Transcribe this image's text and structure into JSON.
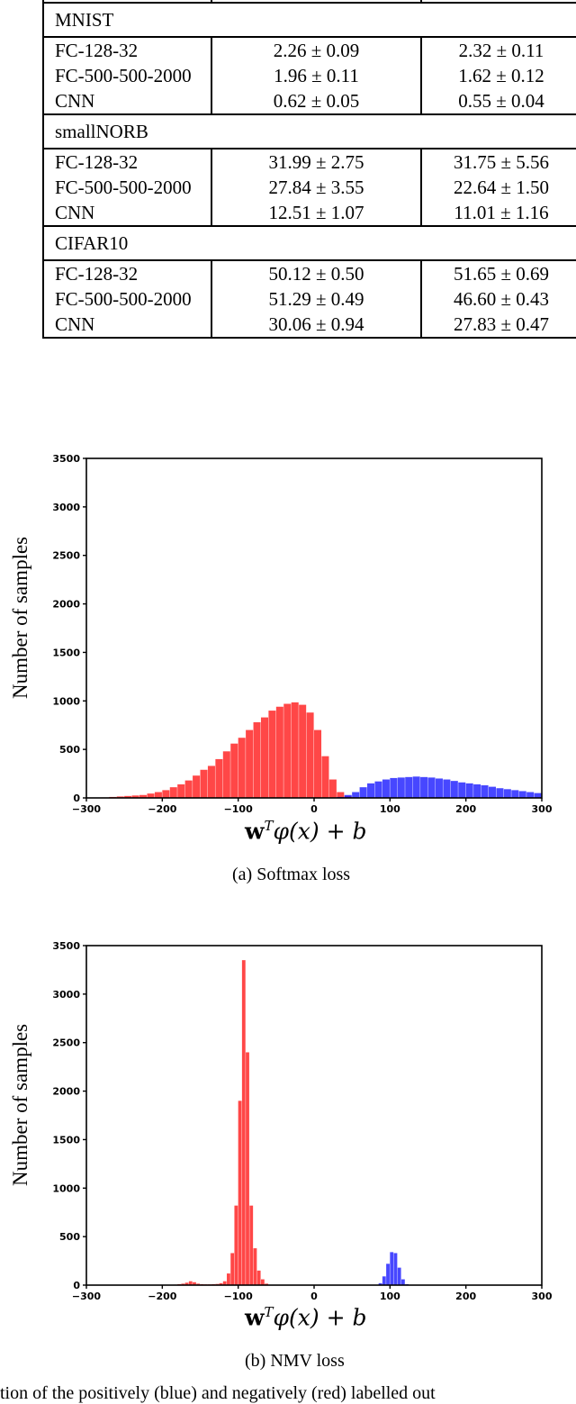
{
  "table": {
    "sections": [
      {
        "name": "MNIST",
        "rows": [
          {
            "model": "FC-128-32",
            "col1": "2.26 ± 0.09",
            "col2": "2.32 ± 0.11"
          },
          {
            "model": "FC-500-500-2000",
            "col1": "1.96 ± 0.11",
            "col2": "1.62 ± 0.12"
          },
          {
            "model": "CNN",
            "col1": "0.62 ± 0.05",
            "col2": "0.55 ± 0.04"
          }
        ]
      },
      {
        "name": "smallNORB",
        "rows": [
          {
            "model": "FC-128-32",
            "col1": "31.99 ± 2.75",
            "col2": "31.75 ± 5.56"
          },
          {
            "model": "FC-500-500-2000",
            "col1": "27.84 ± 3.55",
            "col2": "22.64 ± 1.50"
          },
          {
            "model": "CNN",
            "col1": "12.51 ± 1.07",
            "col2": "11.01 ± 1.16"
          }
        ]
      },
      {
        "name": "CIFAR10",
        "rows": [
          {
            "model": "FC-128-32",
            "col1": "50.12 ± 0.50",
            "col2": "51.65 ± 0.69"
          },
          {
            "model": "FC-500-500-2000",
            "col1": "51.29 ± 0.49",
            "col2": "46.60 ± 0.43"
          },
          {
            "model": "CNN",
            "col1": "30.06 ± 0.94",
            "col2": "27.83 ± 0.47"
          }
        ]
      }
    ]
  },
  "figures": {
    "a": {
      "subcaption": "(a) Softmax loss",
      "ylabel": "Number of samples",
      "xlabel_bold": "w",
      "xlabel_sup": "T",
      "xlabel_rest": "φ(x) + ",
      "xlabel_b": "b"
    },
    "b": {
      "subcaption": "(b) NMV loss",
      "ylabel": "Number of samples",
      "xlabel_bold": "w",
      "xlabel_sup": "T",
      "xlabel_rest": "φ(x) + ",
      "xlabel_b": "b"
    },
    "caption_fragment": "tion of the positively (blue) and negatively (red) labelled out"
  },
  "colors": {
    "positive": "#0000ff",
    "negative": "#ff0000"
  },
  "chart_data": [
    {
      "type": "bar",
      "title": "(a) Softmax loss",
      "xlabel": "w^T φ(x) + b",
      "ylabel": "Number of samples",
      "xlim": [
        -300,
        300
      ],
      "ylim": [
        0,
        3500
      ],
      "xticks": [
        -300,
        -200,
        -100,
        0,
        100,
        200,
        300
      ],
      "yticks": [
        0,
        500,
        1000,
        1500,
        2000,
        2500,
        3000,
        3500
      ],
      "grid": false,
      "bin_width": 10,
      "series": [
        {
          "name": "negative (red)",
          "color": "#ff0000",
          "x": [
            -280,
            -270,
            -260,
            -250,
            -240,
            -230,
            -220,
            -210,
            -200,
            -190,
            -180,
            -170,
            -160,
            -150,
            -140,
            -130,
            -120,
            -110,
            -100,
            -90,
            -80,
            -70,
            -60,
            -50,
            -40,
            -30,
            -20,
            -10,
            0,
            10,
            20,
            30,
            40
          ],
          "values": [
            5,
            10,
            15,
            20,
            25,
            30,
            45,
            60,
            80,
            110,
            140,
            180,
            230,
            290,
            330,
            400,
            480,
            560,
            620,
            700,
            780,
            830,
            900,
            940,
            970,
            985,
            960,
            880,
            700,
            430,
            190,
            60,
            15
          ]
        },
        {
          "name": "positive (blue)",
          "color": "#0000ff",
          "x": [
            30,
            40,
            50,
            60,
            70,
            80,
            90,
            100,
            110,
            120,
            130,
            140,
            150,
            160,
            170,
            180,
            190,
            200,
            210,
            220,
            230,
            240,
            250,
            260,
            270,
            280,
            290
          ],
          "values": [
            10,
            30,
            60,
            110,
            150,
            170,
            190,
            205,
            210,
            215,
            220,
            215,
            210,
            200,
            190,
            175,
            160,
            150,
            140,
            130,
            115,
            100,
            90,
            80,
            70,
            60,
            50
          ]
        }
      ]
    },
    {
      "type": "bar",
      "title": "(b) NMV loss",
      "xlabel": "w^T φ(x) + b",
      "ylabel": "Number of samples",
      "xlim": [
        -300,
        300
      ],
      "ylim": [
        0,
        3500
      ],
      "xticks": [
        -300,
        -200,
        -100,
        0,
        100,
        200,
        300
      ],
      "yticks": [
        0,
        500,
        1000,
        1500,
        2000,
        2500,
        3000,
        3500
      ],
      "grid": false,
      "bin_width": 5,
      "series": [
        {
          "name": "negative (red)",
          "color": "#ff0000",
          "x": [
            -185,
            -180,
            -175,
            -170,
            -165,
            -160,
            -155,
            -150,
            -145,
            -140,
            -135,
            -130,
            -125,
            -120,
            -115,
            -110,
            -105,
            -100,
            -95,
            -90,
            -85,
            -80,
            -75,
            -70,
            -65
          ],
          "values": [
            5,
            10,
            15,
            25,
            40,
            30,
            15,
            10,
            8,
            8,
            10,
            12,
            20,
            40,
            120,
            330,
            820,
            1900,
            3350,
            2400,
            820,
            380,
            150,
            60,
            15
          ]
        },
        {
          "name": "positive (blue)",
          "color": "#0000ff",
          "x": [
            85,
            90,
            95,
            100,
            105,
            110,
            115,
            120
          ],
          "values": [
            20,
            90,
            220,
            340,
            330,
            180,
            60,
            10
          ]
        }
      ]
    }
  ]
}
